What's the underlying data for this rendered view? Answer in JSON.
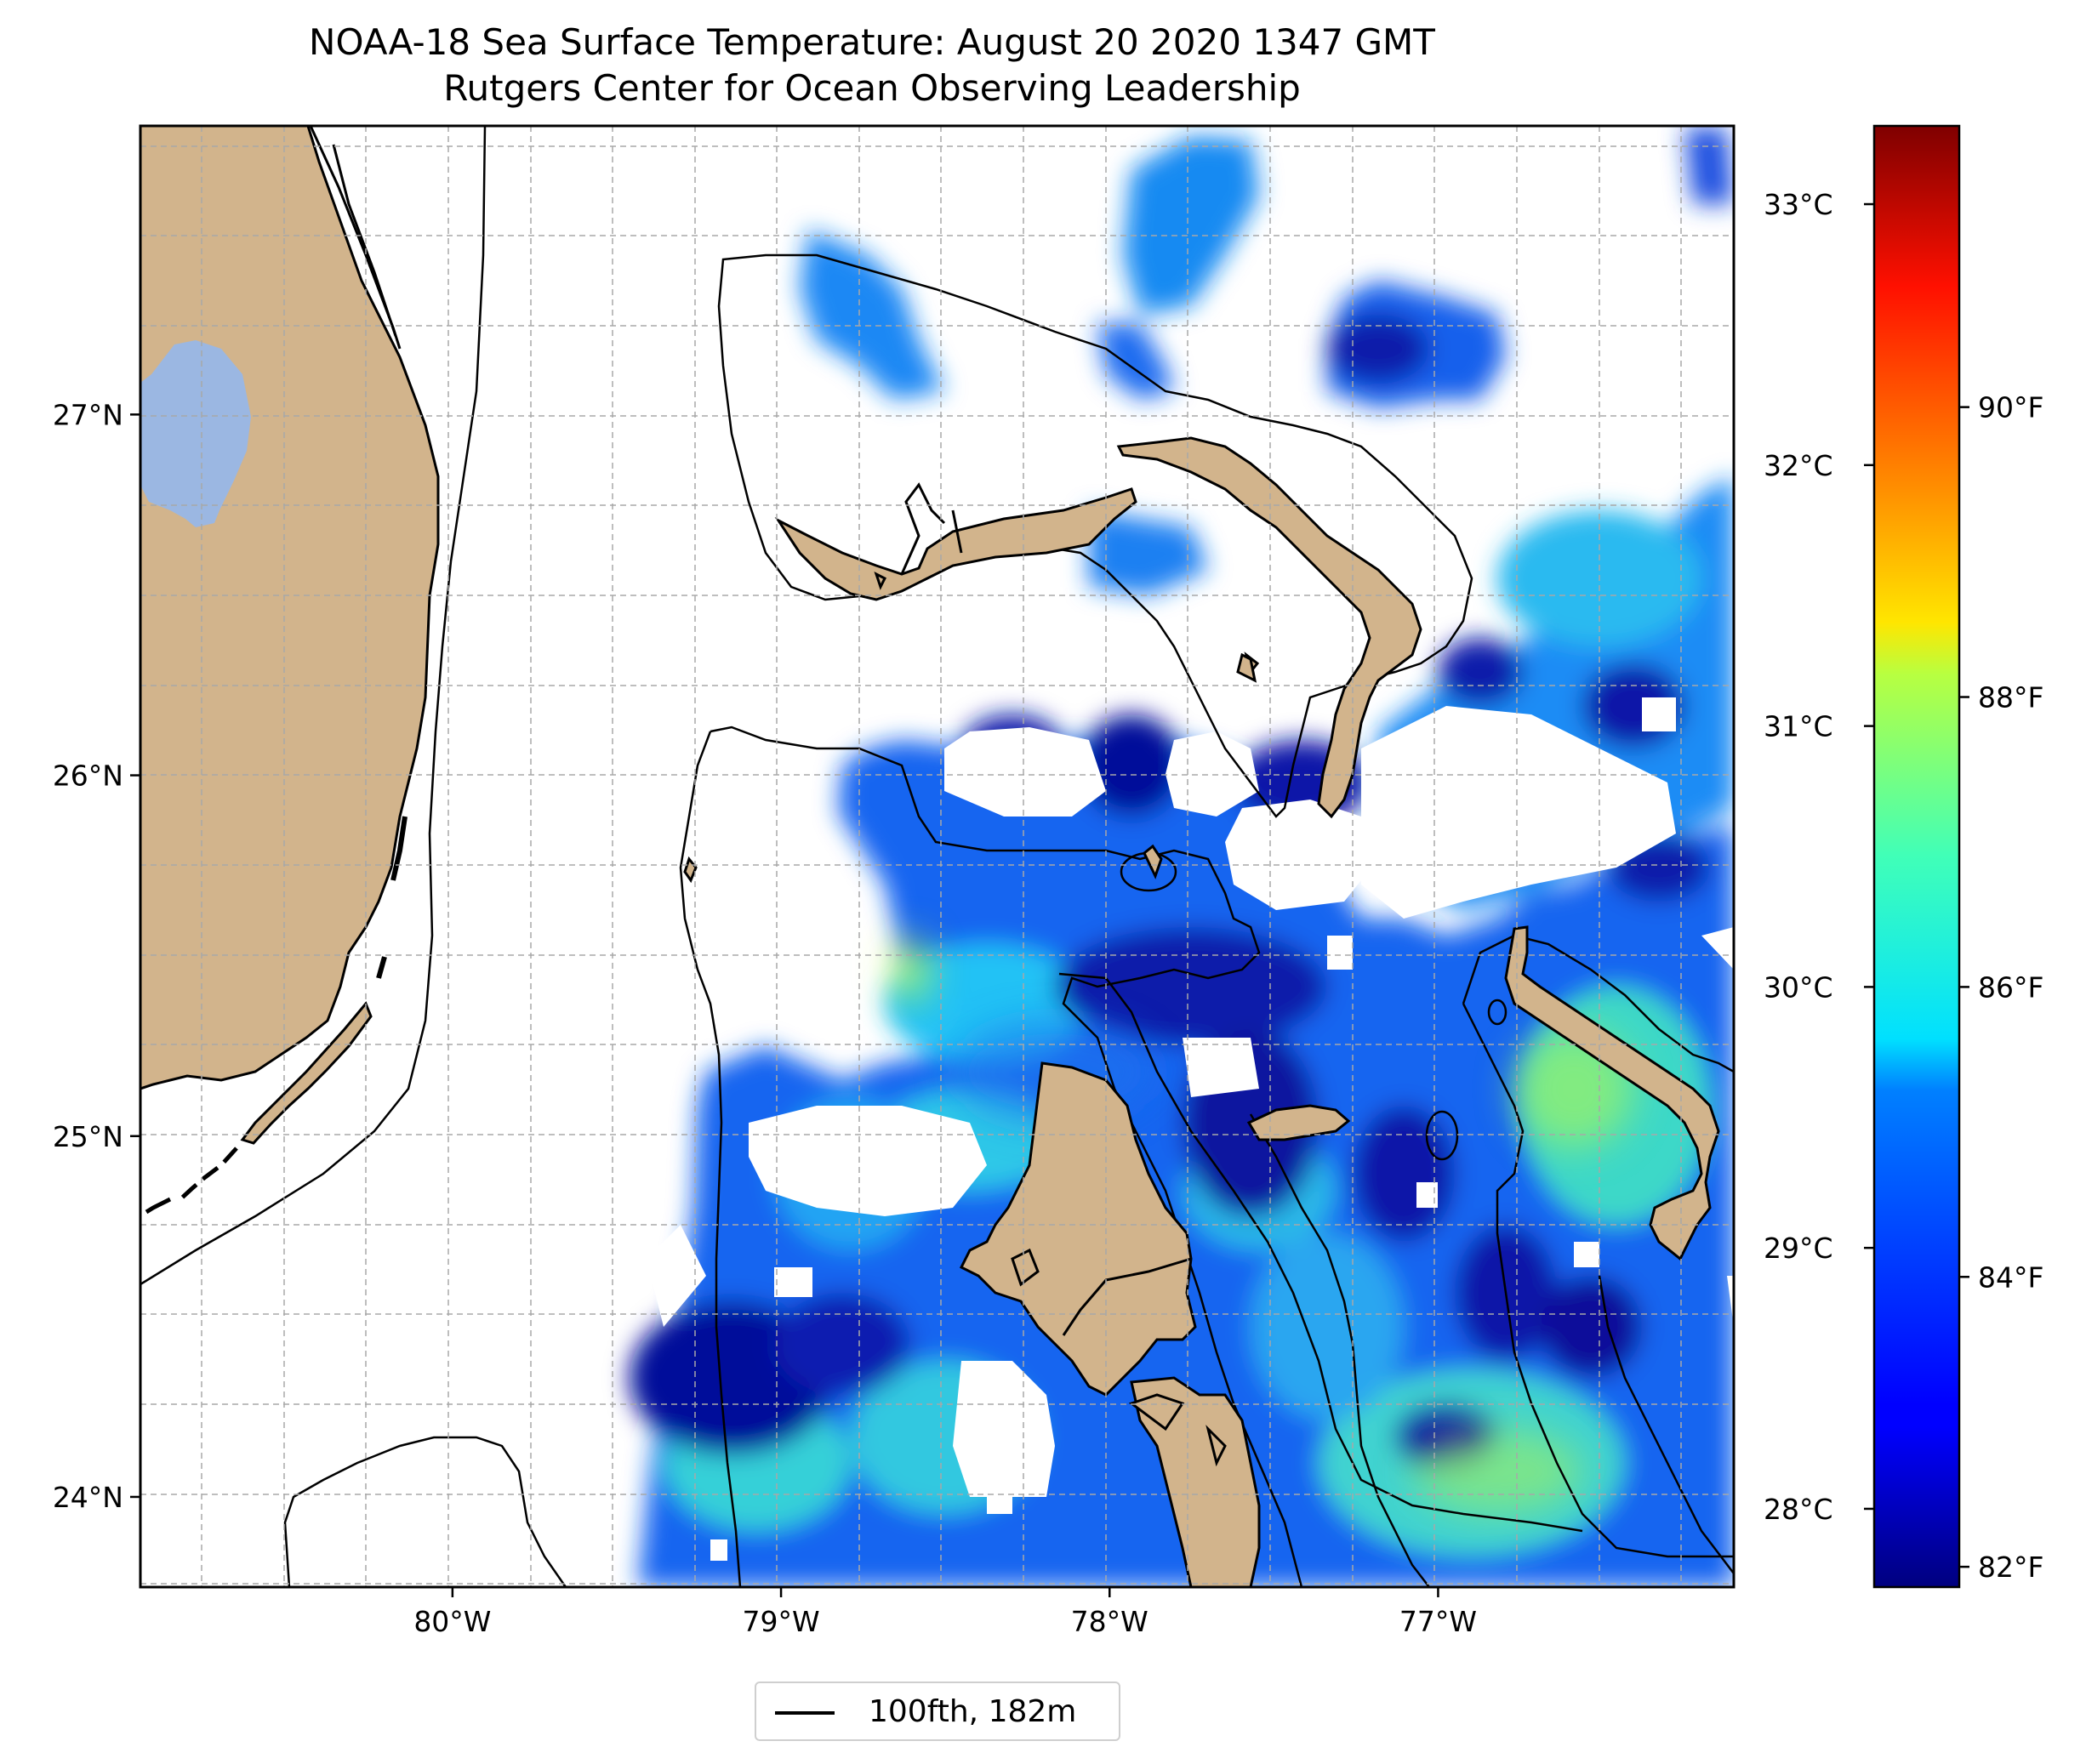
{
  "title": {
    "line1": "NOAA-18 Sea Surface Temperature: August 20 2020 1347 GMT",
    "line2": "Rutgers Center for Ocean Observing Leadership"
  },
  "map": {
    "lon_range": [
      -80.95,
      -76.1
    ],
    "lat_range": [
      23.75,
      27.8
    ],
    "x_ticks": [
      {
        "lon": -80,
        "label": "80°W"
      },
      {
        "lon": -79,
        "label": "79°W"
      },
      {
        "lon": -78,
        "label": "78°W"
      },
      {
        "lon": -77,
        "label": "77°W"
      }
    ],
    "y_ticks": [
      {
        "lat": 24,
        "label": "24°N"
      },
      {
        "lat": 25,
        "label": "25°N"
      },
      {
        "lat": 26,
        "label": "26°N"
      },
      {
        "lat": 27,
        "label": "27°N"
      }
    ],
    "minor_grid_step_deg": 0.25,
    "gridlines": "dashed, light gray",
    "land_color": "#d2b48c",
    "lake_color": "#9bb7e2",
    "contour_label": "100fth, 182m",
    "legend_placement": "bottom-center below map",
    "data_gaps": "white (cloud cover)"
  },
  "colorbar": {
    "cmap": "jet",
    "celsius_range": [
      27.7,
      33.3
    ],
    "celsius_ticks": [
      {
        "value": 28,
        "label": "28°C"
      },
      {
        "value": 29,
        "label": "29°C"
      },
      {
        "value": 30,
        "label": "30°C"
      },
      {
        "value": 31,
        "label": "31°C"
      },
      {
        "value": 32,
        "label": "32°C"
      },
      {
        "value": 33,
        "label": "33°C"
      }
    ],
    "fahrenheit_ticks": [
      {
        "value": 82,
        "label": "82°F"
      },
      {
        "value": 84,
        "label": "84°F"
      },
      {
        "value": 86,
        "label": "86°F"
      },
      {
        "value": 88,
        "label": "88°F"
      },
      {
        "value": 90,
        "label": "90°F"
      }
    ]
  }
}
